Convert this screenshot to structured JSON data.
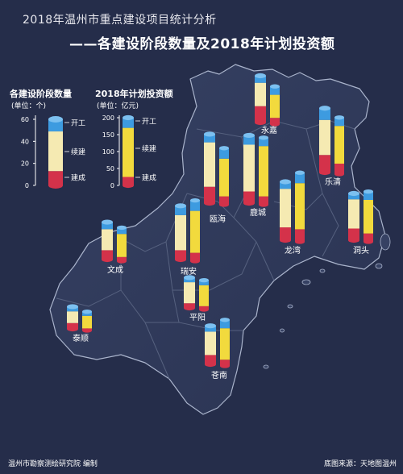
{
  "title_line1": "2018年温州市重点建设项目统计分析",
  "title_line2": "——各建设阶段数量及2018年计划投资额",
  "footer": {
    "left": "温州市勘察测绘研究院 编制",
    "right": "底图来源：天地图温州"
  },
  "colors": {
    "background": "#252d4a",
    "map_land": "#2f3957",
    "map_edge": "#aab4cc",
    "start": "#3d9be0",
    "continue": "#f5eab2",
    "build": "#d4324a",
    "investment_top": "#3d9be0",
    "investment_body": "#f2da3d",
    "investment_bottom": "#d4324a"
  },
  "chart_data": {
    "type": "bar",
    "title": "2018年温州市重点建设项目统计分析——各建设阶段数量及2018年计划投资额",
    "legend": [
      {
        "title": "各建设阶段数量",
        "unit": "(单位：个)",
        "ticks": [
          0,
          20,
          40,
          60
        ],
        "stage_labels": [
          "开工",
          "续建",
          "建成"
        ]
      },
      {
        "title": "2018年计划投资额",
        "unit": "(单位：亿元)",
        "ticks": [
          0,
          50,
          100,
          150,
          200
        ],
        "stage_labels": [
          "开工",
          "续建",
          "建成"
        ]
      }
    ],
    "series_count": [
      {
        "name": "建成",
        "values": [
          14,
          15,
          14,
          10,
          10,
          11,
          8,
          8,
          4,
          5,
          8
        ]
      },
      {
        "name": "续建",
        "values": [
          20,
          30,
          38,
          40,
          25,
          33,
          30,
          18,
          18,
          10,
          20
        ]
      },
      {
        "name": "开工",
        "values": [
          6,
          10,
          7,
          8,
          5,
          6,
          8,
          6,
          4,
          4,
          5
        ]
      }
    ],
    "series_investment": [
      {
        "name": "建成",
        "values": [
          15,
          25,
          20,
          20,
          20,
          30,
          20,
          10,
          8,
          5,
          15
        ]
      },
      {
        "name": "续建",
        "values": [
          55,
          90,
          90,
          120,
          80,
          110,
          100,
          55,
          50,
          30,
          75
        ]
      },
      {
        "name": "开工",
        "values": [
          20,
          20,
          25,
          20,
          20,
          25,
          25,
          15,
          12,
          10,
          20
        ]
      }
    ],
    "categories": [
      "永嘉",
      "乐清",
      "瓯海",
      "鹿城",
      "洞头",
      "龙湾",
      "瑞安",
      "文成",
      "平阳",
      "泰顺",
      "苍南"
    ]
  }
}
